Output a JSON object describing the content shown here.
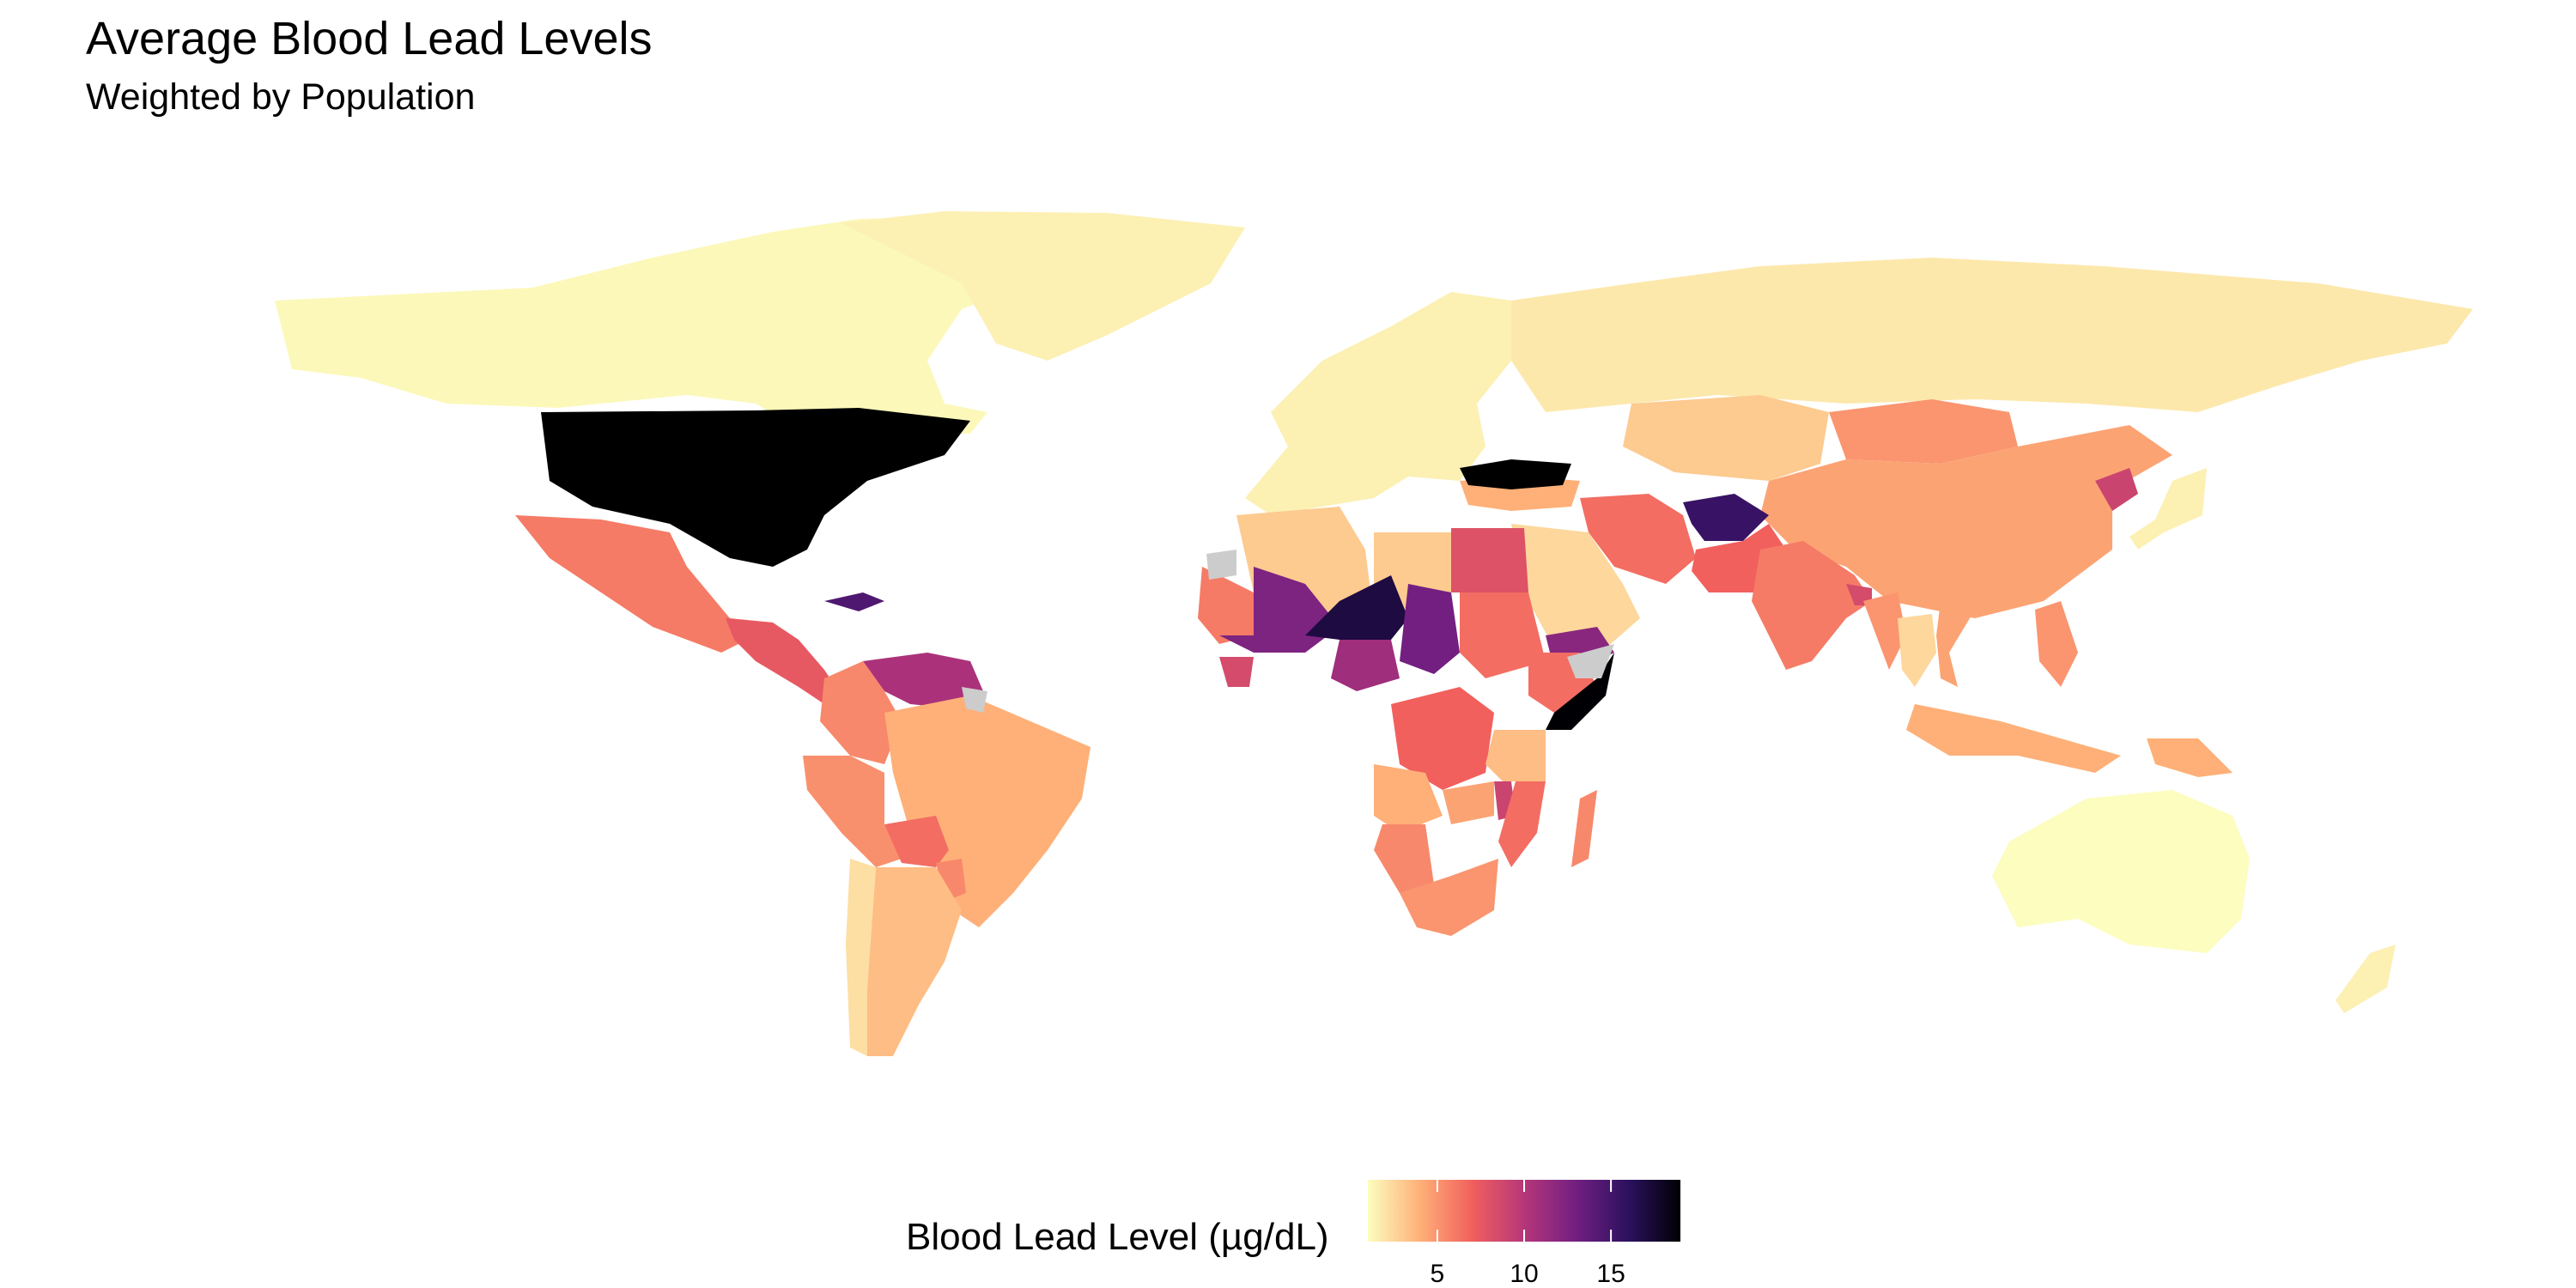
{
  "title": "Average Blood Lead Levels",
  "subtitle": "Weighted by Population",
  "legend": {
    "title": "Blood Lead Level (µg/dL)",
    "min": 1,
    "max": 19,
    "ticks": [
      {
        "value": 5,
        "label": "5"
      },
      {
        "value": 10,
        "label": "10"
      },
      {
        "value": 15,
        "label": "15"
      }
    ],
    "palette": [
      "#fcfdbf",
      "#feb078",
      "#f1605d",
      "#b63679",
      "#721f81",
      "#2c115f",
      "#000004"
    ],
    "no_data_color": "#cccccc"
  },
  "regions": [
    {
      "name": "Canada",
      "value": 1.2
    },
    {
      "name": "Greenland",
      "value": 1.5
    },
    {
      "name": "United States",
      "value": 1.0
    },
    {
      "name": "Mexico",
      "value": 6.0
    },
    {
      "name": "Central America",
      "value": 7.5
    },
    {
      "name": "Haiti",
      "value": 14.5
    },
    {
      "name": "Venezuela",
      "value": 10.5
    },
    {
      "name": "Colombia",
      "value": 5.5
    },
    {
      "name": "Peru",
      "value": 5.2
    },
    {
      "name": "Brazil",
      "value": 4.0
    },
    {
      "name": "Bolivia",
      "value": 6.5
    },
    {
      "name": "Paraguay",
      "value": 5.5
    },
    {
      "name": "Argentina",
      "value": 3.5
    },
    {
      "name": "Chile",
      "value": 2.2
    },
    {
      "name": "Europe",
      "value": 1.5
    },
    {
      "name": "Russia",
      "value": 1.8
    },
    {
      "name": "Kazakhstan",
      "value": 3.0
    },
    {
      "name": "Mongolia",
      "value": 5.0
    },
    {
      "name": "China",
      "value": 4.5
    },
    {
      "name": "North Korea",
      "value": 9.0
    },
    {
      "name": "Japan",
      "value": 1.5
    },
    {
      "name": "Iran",
      "value": 6.5
    },
    {
      "name": "Afghanistan",
      "value": 15.5
    },
    {
      "name": "Pakistan",
      "value": 7.0
    },
    {
      "name": "India",
      "value": 6.0
    },
    {
      "name": "Bangladesh",
      "value": 8.5
    },
    {
      "name": "Myanmar",
      "value": 5.0
    },
    {
      "name": "Thailand",
      "value": 2.5
    },
    {
      "name": "Vietnam",
      "value": 4.5
    },
    {
      "name": "Philippines",
      "value": 5.0
    },
    {
      "name": "Indonesia",
      "value": 4.0
    },
    {
      "name": "Papua New Guinea",
      "value": 4.0
    },
    {
      "name": "Australia",
      "value": 1.0
    },
    {
      "name": "New Zealand",
      "value": 1.5
    },
    {
      "name": "Saudi Arabia",
      "value": 2.5
    },
    {
      "name": "Yemen",
      "value": 12.0
    },
    {
      "name": "Egypt",
      "value": 8.0
    },
    {
      "name": "Libya",
      "value": 3.0
    },
    {
      "name": "Algeria",
      "value": 3.0
    },
    {
      "name": "Mauritania",
      "value": 6.0
    },
    {
      "name": "Mali",
      "value": 12.5
    },
    {
      "name": "Niger",
      "value": 17.0
    },
    {
      "name": "Chad",
      "value": 13.0
    },
    {
      "name": "Nigeria",
      "value": 11.0
    },
    {
      "name": "Sierra Leone",
      "value": 8.5
    },
    {
      "name": "Sudan",
      "value": 6.5
    },
    {
      "name": "Ethiopia",
      "value": 6.5
    },
    {
      "name": "Somalia",
      "value": 19.0
    },
    {
      "name": "DR Congo",
      "value": 7.0
    },
    {
      "name": "Angola",
      "value": 4.0
    },
    {
      "name": "Tanzania",
      "value": 3.5
    },
    {
      "name": "Zambia",
      "value": 4.5
    },
    {
      "name": "Malawi",
      "value": 9.0
    },
    {
      "name": "Mozambique",
      "value": 6.5
    },
    {
      "name": "Madagascar",
      "value": 5.5
    },
    {
      "name": "Namibia",
      "value": 5.5
    },
    {
      "name": "South Africa",
      "value": 5.0
    },
    {
      "name": "Turkey",
      "value": 4.0
    }
  ],
  "no_data_regions": [
    {
      "name": "Black Sea region"
    },
    {
      "name": "Western Sahara"
    },
    {
      "name": "Djibouti"
    },
    {
      "name": "French Guiana"
    }
  ]
}
